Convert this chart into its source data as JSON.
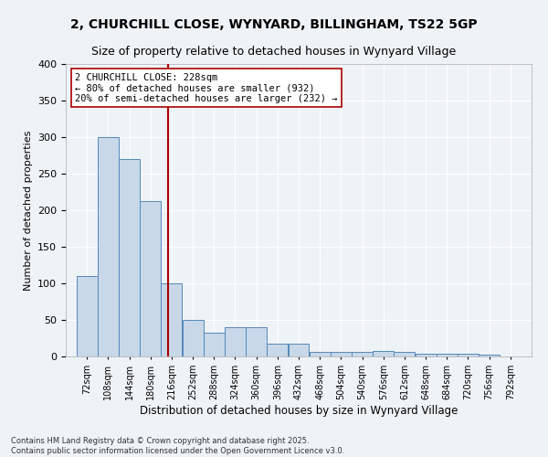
{
  "title1": "2, CHURCHILL CLOSE, WYNYARD, BILLINGHAM, TS22 5GP",
  "title2": "Size of property relative to detached houses in Wynyard Village",
  "xlabel": "Distribution of detached houses by size in Wynyard Village",
  "ylabel": "Number of detached properties",
  "bar_values": [
    110,
    300,
    270,
    213,
    100,
    50,
    32,
    40,
    40,
    18,
    18,
    6,
    6,
    6,
    7,
    6,
    4,
    4,
    4,
    3
  ],
  "bar_labels": [
    "72sqm",
    "108sqm",
    "144sqm",
    "180sqm",
    "216sqm",
    "252sqm",
    "288sqm",
    "324sqm",
    "360sqm",
    "396sqm",
    "432sqm",
    "468sqm",
    "504sqm",
    "540sqm",
    "576sqm",
    "612sqm",
    "648sqm",
    "684sqm",
    "720sqm",
    "756sqm",
    "792sqm"
  ],
  "bin_edges": [
    72,
    108,
    144,
    180,
    216,
    252,
    288,
    324,
    360,
    396,
    432,
    468,
    504,
    540,
    576,
    612,
    648,
    684,
    720,
    756,
    792
  ],
  "bar_color": "#c8d8e8",
  "bar_edge_color": "#5588bb",
  "vline_x": 228,
  "vline_color": "#aa0000",
  "annotation_text": "2 CHURCHILL CLOSE: 228sqm\n← 80% of detached houses are smaller (932)\n20% of semi-detached houses are larger (232) →",
  "annotation_box_color": "#ffffff",
  "annotation_box_edge": "#aa0000",
  "ylim": [
    0,
    400
  ],
  "yticks": [
    0,
    50,
    100,
    150,
    200,
    250,
    300,
    350,
    400
  ],
  "footer": "Contains HM Land Registry data © Crown copyright and database right 2025.\nContains public sector information licensed under the Open Government Licence v3.0.",
  "bg_color": "#eef3f8",
  "grid_color": "#ffffff"
}
